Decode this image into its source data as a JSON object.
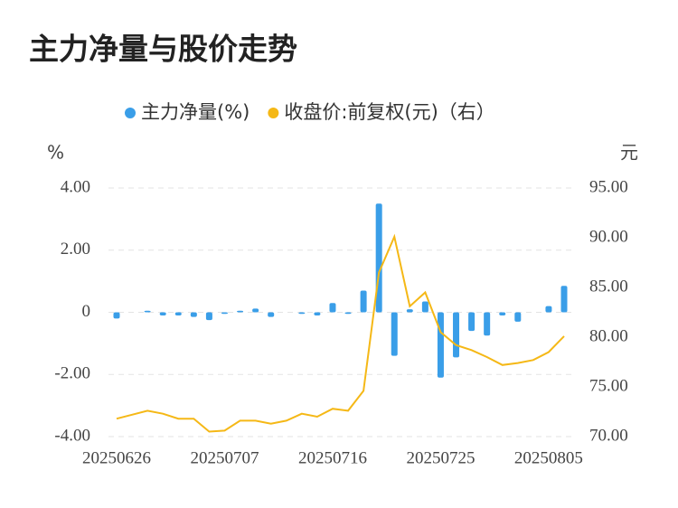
{
  "chart_data": {
    "type": "bar_line",
    "title": "主力净量与股价走势",
    "y_label": "%",
    "y2_label": "元",
    "categories": [
      "20250626",
      null,
      null,
      null,
      null,
      null,
      null,
      "20250707",
      null,
      null,
      null,
      null,
      null,
      null,
      "20250716",
      null,
      null,
      null,
      null,
      null,
      null,
      "20250725",
      null,
      null,
      null,
      null,
      null,
      null,
      "20250805",
      null
    ],
    "ylim": [
      -4,
      4
    ],
    "yticks": [
      {
        "value": 4,
        "label": "4.00"
      },
      {
        "value": 2,
        "label": "2.00"
      },
      0,
      {
        "value": -2,
        "label": "-2.00"
      },
      {
        "value": -4,
        "label": "-4.00"
      }
    ],
    "y2lim": [
      70,
      95
    ],
    "y2ticks": [
      {
        "value": 95,
        "label": "95.00"
      },
      {
        "value": 90,
        "label": "90.00"
      },
      {
        "value": 85,
        "label": "85.00"
      },
      {
        "value": 80,
        "label": "80.00"
      },
      {
        "value": 75,
        "label": "75.00"
      },
      {
        "value": 70,
        "label": "70.00"
      }
    ],
    "grid": true,
    "legend": "top",
    "series": [
      {
        "name": "主力净量(%)",
        "color": "#3a9ee8",
        "kind": "bar",
        "values": [
          -0.2,
          0,
          0.05,
          -0.1,
          -0.1,
          -0.15,
          -0.25,
          -0.05,
          0.05,
          0.12,
          -0.15,
          0,
          -0.05,
          -0.1,
          0.3,
          -0.05,
          0.7,
          3.5,
          -1.4,
          0.1,
          0.35,
          -2.1,
          -1.45,
          -0.6,
          -0.75,
          -0.1,
          -0.3,
          0,
          0.2,
          0.85
        ]
      },
      {
        "name": "收盘价:前复权(元)（右）",
        "color": "#f5b816",
        "kind": "line",
        "axis": "y2",
        "values": [
          71.8,
          72.2,
          72.6,
          72.3,
          71.8,
          71.8,
          70.5,
          70.6,
          71.6,
          71.6,
          71.3,
          71.6,
          72.3,
          72.0,
          72.8,
          72.6,
          74.6,
          86.5,
          90.1,
          83.1,
          84.5,
          80.5,
          79.2,
          78.7,
          78.0,
          77.2,
          77.4,
          77.7,
          78.5,
          80.1
        ]
      }
    ]
  }
}
